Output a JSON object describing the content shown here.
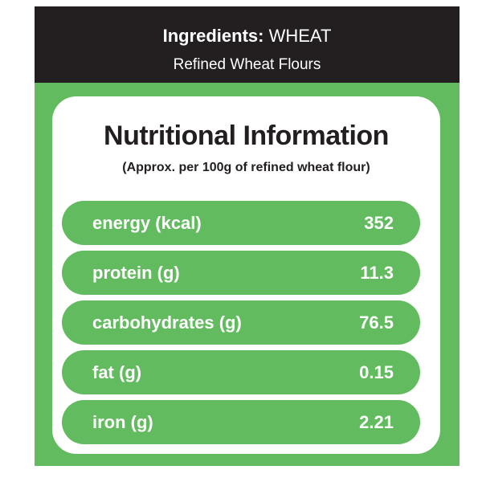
{
  "header": {
    "label": "Ingredients:",
    "ingredient": "WHEAT",
    "description": "Refined Wheat Flours"
  },
  "card": {
    "title": "Nutritional Information",
    "subtitle": "(Approx. per 100g of refined wheat flour)"
  },
  "table": {
    "rows": [
      [
        "energy (kcal)",
        352
      ],
      [
        "protein (g)",
        11.3
      ],
      [
        "carbohydrates (g)",
        76.5
      ],
      [
        "fat (g)",
        0.15
      ],
      [
        "iron (g)",
        2.21
      ]
    ]
  }
}
